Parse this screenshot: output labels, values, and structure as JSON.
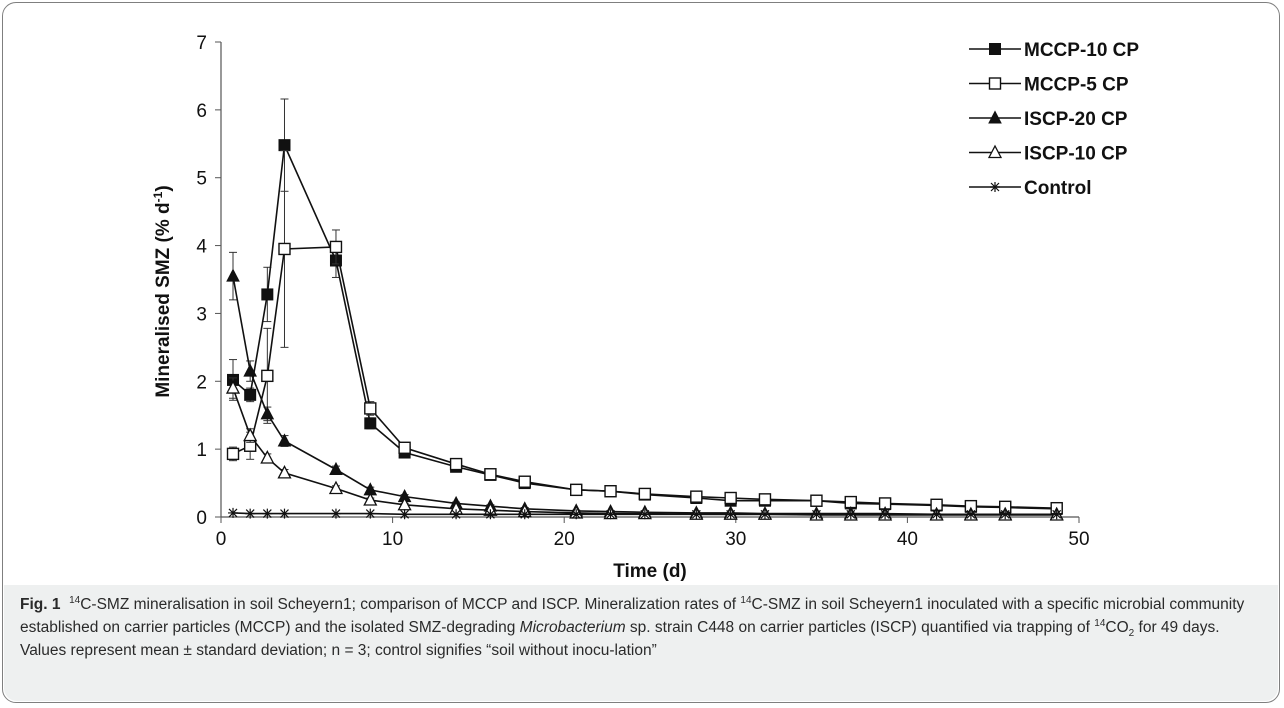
{
  "chart_data": {
    "type": "line",
    "xlabel": "Time (d)",
    "ylabel": "Mineralised SMZ (% d",
    "ylabel_sup": "-1",
    "ylabel_end": ")",
    "xlim": [
      0,
      50
    ],
    "ylim": [
      0,
      7
    ],
    "xticks": [
      0,
      10,
      20,
      30,
      40,
      50
    ],
    "yticks": [
      0,
      1,
      2,
      3,
      4,
      5,
      6,
      7
    ],
    "grid": false,
    "legend_position": "top-right",
    "series": [
      {
        "name": "MCCP-10 CP",
        "marker": "filled-square",
        "x": [
          0.7,
          1.7,
          2.7,
          3.7,
          6.7,
          8.7,
          10.7,
          13.7,
          15.7,
          17.7,
          20.7,
          22.7,
          24.7,
          27.7,
          29.7,
          31.7,
          34.7,
          36.7,
          38.7,
          41.7,
          43.7,
          45.7,
          48.7
        ],
        "y": [
          2.02,
          1.8,
          3.28,
          5.48,
          3.78,
          1.38,
          0.95,
          0.74,
          0.62,
          0.5,
          0.4,
          0.38,
          0.33,
          0.28,
          0.24,
          0.24,
          0.24,
          0.2,
          0.19,
          0.17,
          0.15,
          0.14,
          0.12
        ],
        "err": [
          0.3,
          0.1,
          0.4,
          0.68,
          0.25,
          0.08,
          0.05,
          0.05,
          0.04,
          0.04,
          0.03,
          0.03,
          0.03,
          0.02,
          0.02,
          0.02,
          0.02,
          0.02,
          0.02,
          0.02,
          0.02,
          0.02,
          0.02
        ]
      },
      {
        "name": "MCCP-5 CP",
        "marker": "open-square",
        "x": [
          0.7,
          1.7,
          2.7,
          3.7,
          6.7,
          8.7,
          10.7,
          13.7,
          15.7,
          17.7,
          20.7,
          22.7,
          24.7,
          27.7,
          29.7,
          31.7,
          34.7,
          36.7,
          38.7,
          41.7,
          43.7,
          45.7,
          48.7
        ],
        "y": [
          0.93,
          1.05,
          2.08,
          3.95,
          3.98,
          1.6,
          1.02,
          0.78,
          0.63,
          0.52,
          0.4,
          0.38,
          0.34,
          0.3,
          0.28,
          0.26,
          0.24,
          0.22,
          0.2,
          0.18,
          0.16,
          0.15,
          0.13
        ],
        "err": [
          0.1,
          0.2,
          0.7,
          1.45,
          0.25,
          0.1,
          0.06,
          0.05,
          0.04,
          0.04,
          0.03,
          0.03,
          0.03,
          0.02,
          0.02,
          0.02,
          0.02,
          0.02,
          0.02,
          0.02,
          0.02,
          0.02,
          0.02
        ]
      },
      {
        "name": "ISCP-20 CP",
        "marker": "filled-triangle",
        "x": [
          0.7,
          1.7,
          2.7,
          3.7,
          6.7,
          8.7,
          10.7,
          13.7,
          15.7,
          17.7,
          20.7,
          22.7,
          24.7,
          27.7,
          29.7,
          31.7,
          34.7,
          36.7,
          38.7,
          41.7,
          43.7,
          45.7,
          48.7
        ],
        "y": [
          3.55,
          2.15,
          1.52,
          1.12,
          0.7,
          0.4,
          0.3,
          0.2,
          0.16,
          0.12,
          0.09,
          0.08,
          0.07,
          0.06,
          0.06,
          0.05,
          0.05,
          0.05,
          0.05,
          0.04,
          0.04,
          0.04,
          0.04
        ],
        "err": [
          0.35,
          0.15,
          0.1,
          0.08,
          0.05,
          0.04,
          0.03,
          0.02,
          0.02,
          0.02,
          0.01,
          0.01,
          0.01,
          0.01,
          0.01,
          0.01,
          0.01,
          0.01,
          0.01,
          0.01,
          0.01,
          0.01,
          0.01
        ]
      },
      {
        "name": "ISCP-10 CP",
        "marker": "open-triangle",
        "x": [
          0.7,
          1.7,
          2.7,
          3.7,
          6.7,
          8.7,
          10.7,
          13.7,
          15.7,
          17.7,
          20.7,
          22.7,
          24.7,
          27.7,
          29.7,
          31.7,
          34.7,
          36.7,
          38.7,
          41.7,
          43.7,
          45.7,
          48.7
        ],
        "y": [
          1.9,
          1.2,
          0.87,
          0.65,
          0.42,
          0.25,
          0.18,
          0.12,
          0.1,
          0.08,
          0.06,
          0.05,
          0.05,
          0.04,
          0.04,
          0.04,
          0.03,
          0.03,
          0.03,
          0.03,
          0.03,
          0.03,
          0.03
        ],
        "err": [
          0.15,
          0.1,
          0.06,
          0.05,
          0.04,
          0.03,
          0.02,
          0.02,
          0.01,
          0.01,
          0.01,
          0.01,
          0.01,
          0.01,
          0.01,
          0.01,
          0.01,
          0.01,
          0.01,
          0.01,
          0.01,
          0.01,
          0.01
        ]
      },
      {
        "name": "Control",
        "marker": "asterisk",
        "x": [
          0.7,
          1.7,
          2.7,
          3.7,
          6.7,
          8.7,
          10.7,
          13.7,
          15.7,
          17.7,
          20.7,
          22.7,
          24.7,
          27.7,
          29.7,
          31.7,
          34.7,
          36.7,
          38.7,
          41.7,
          43.7,
          45.7,
          48.7
        ],
        "y": [
          0.06,
          0.05,
          0.05,
          0.05,
          0.05,
          0.05,
          0.04,
          0.04,
          0.04,
          0.04,
          0.04,
          0.04,
          0.04,
          0.04,
          0.04,
          0.04,
          0.04,
          0.04,
          0.04,
          0.04,
          0.04,
          0.04,
          0.04
        ],
        "err": [
          0,
          0,
          0,
          0,
          0,
          0,
          0,
          0,
          0,
          0,
          0,
          0,
          0,
          0,
          0,
          0,
          0,
          0,
          0,
          0,
          0,
          0,
          0
        ]
      }
    ]
  },
  "caption": {
    "label": "Fig. 1",
    "sup14": "14",
    "t1": "C-SMZ mineralisation in soil Scheyern1; comparison of MCCP and ISCP. Mineralization rates of ",
    "t2": "C-SMZ in soil Scheyern1 inoculated with a specific microbial community established on carrier particles (MCCP) and the isolated SMZ-degrading ",
    "italic": "Microbacterium",
    "t3": " sp. strain C448 on carrier particles (ISCP) quantified via trapping of ",
    "t4": "CO",
    "sub2": "2",
    "t5": " for 49 days. Values represent mean ± standard deviation; n = 3; control signifies “soil without inocu-lation”"
  }
}
